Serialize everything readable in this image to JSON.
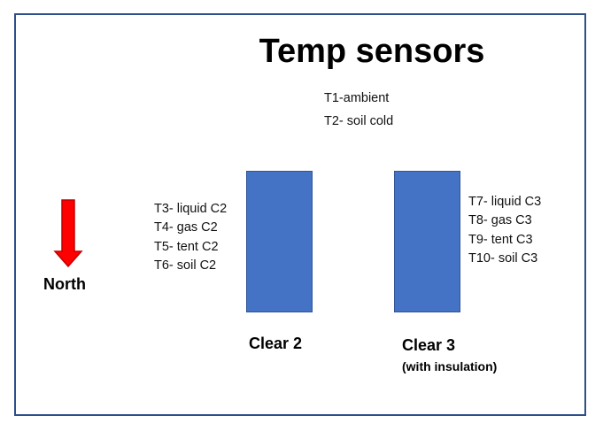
{
  "title": "Temp sensors",
  "top_sensors": [
    "T1-ambient",
    "T2- soil cold"
  ],
  "clear2": {
    "label": "Clear 2",
    "sensors": [
      "T3- liquid C2",
      "T4- gas C2",
      "T5- tent C2",
      "T6- soil C2"
    ]
  },
  "clear3": {
    "label": "Clear 3",
    "note": "(with insulation)",
    "sensors": [
      "T7- liquid C3",
      "T8- gas C3",
      "T9- tent C3",
      "T10- soil C3"
    ]
  },
  "compass": {
    "label": "North",
    "icon": "down-arrow-icon",
    "color": "#ff0000"
  },
  "colors": {
    "bar_fill": "#4472c4",
    "frame_border": "#2f4f8a"
  }
}
